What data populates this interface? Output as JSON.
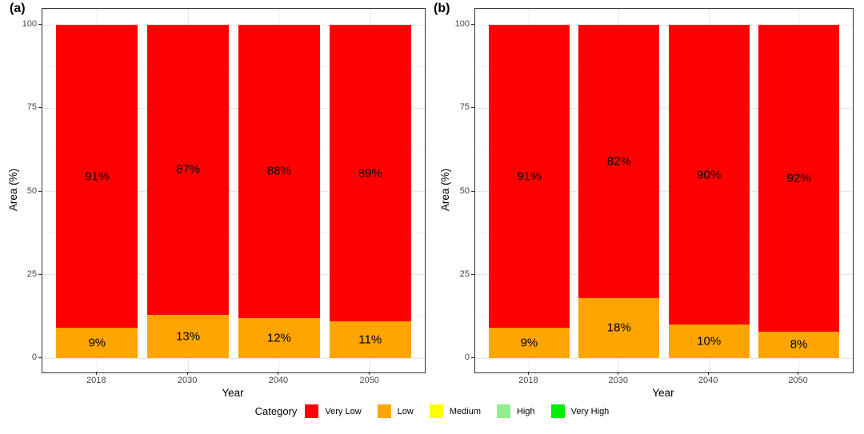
{
  "chart_data": [
    {
      "panel": "(a)",
      "type": "bar",
      "stacked": true,
      "orientation": "vertical",
      "categories": [
        "2018",
        "2030",
        "2040",
        "2050"
      ],
      "series": [
        {
          "name": "Very Low",
          "color": "#FE0000",
          "values": [
            91,
            87,
            88,
            89
          ],
          "labels": [
            "91%",
            "87%",
            "88%",
            "89%"
          ]
        },
        {
          "name": "Low",
          "color": "#FFA500",
          "values": [
            9,
            13,
            12,
            11
          ],
          "labels": [
            "9%",
            "13%",
            "12%",
            "11%"
          ]
        },
        {
          "name": "Medium",
          "color": "#FFFF00",
          "values": [
            0,
            0,
            0,
            0
          ],
          "labels": [
            "",
            "",
            "",
            ""
          ]
        },
        {
          "name": "High",
          "color": "#90EE90",
          "values": [
            0,
            0,
            0,
            0
          ],
          "labels": [
            "",
            "",
            "",
            ""
          ]
        },
        {
          "name": "Very High",
          "color": "#00EE00",
          "values": [
            0,
            0,
            0,
            0
          ],
          "labels": [
            "",
            "",
            "",
            ""
          ]
        }
      ],
      "xlabel": "Year",
      "ylabel": "Area (%)",
      "ylim": [
        0,
        100
      ],
      "yticks": [
        0,
        25,
        50,
        75,
        100
      ],
      "yticks_minor": [
        12.5,
        37.5,
        62.5,
        87.5
      ],
      "grid": true,
      "panel_border": true
    },
    {
      "panel": "(b)",
      "type": "bar",
      "stacked": true,
      "orientation": "vertical",
      "categories": [
        "2018",
        "2030",
        "2040",
        "2050"
      ],
      "series": [
        {
          "name": "Very Low",
          "color": "#FE0000",
          "values": [
            91,
            82,
            90,
            92
          ],
          "labels": [
            "91%",
            "82%",
            "90%",
            "92%"
          ]
        },
        {
          "name": "Low",
          "color": "#FFA500",
          "values": [
            9,
            18,
            10,
            8
          ],
          "labels": [
            "9%",
            "18%",
            "10%",
            "8%"
          ]
        },
        {
          "name": "Medium",
          "color": "#FFFF00",
          "values": [
            0,
            0,
            0,
            0
          ],
          "labels": [
            "",
            "",
            "",
            ""
          ]
        },
        {
          "name": "High",
          "color": "#90EE90",
          "values": [
            0,
            0,
            0,
            0
          ],
          "labels": [
            "",
            "",
            "",
            ""
          ]
        },
        {
          "name": "Very High",
          "color": "#00EE00",
          "values": [
            0,
            0,
            0,
            0
          ],
          "labels": [
            "",
            "",
            "",
            ""
          ]
        }
      ],
      "xlabel": "Year",
      "ylabel": "Area (%)",
      "ylim": [
        0,
        100
      ],
      "yticks": [
        0,
        25,
        50,
        75,
        100
      ],
      "yticks_minor": [
        12.5,
        37.5,
        62.5,
        87.5
      ],
      "grid": true,
      "panel_border": true
    }
  ],
  "legend": {
    "title": "Category",
    "position": "bottom",
    "items": [
      {
        "label": "Very Low",
        "color": "#FE0000"
      },
      {
        "label": "Low",
        "color": "#FFA500"
      },
      {
        "label": "Medium",
        "color": "#FFFF00"
      },
      {
        "label": "High",
        "color": "#90EE90"
      },
      {
        "label": "Very High",
        "color": "#00EE00"
      }
    ]
  }
}
